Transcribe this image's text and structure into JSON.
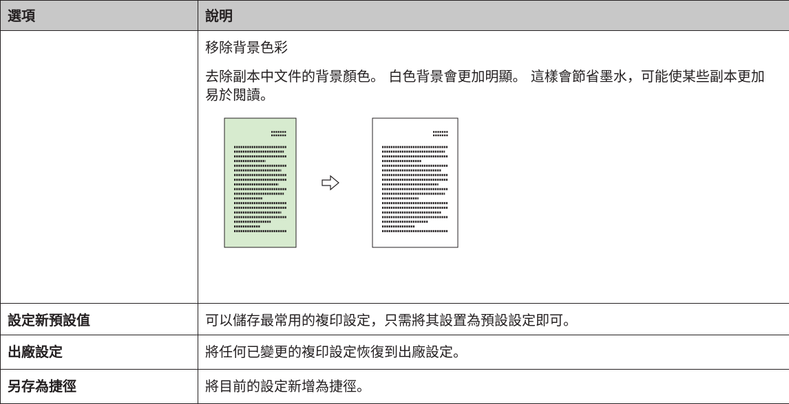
{
  "table": {
    "header": [
      "選項",
      "說明"
    ],
    "rows": [
      {
        "description_title": "移除背景色彩",
        "description": "去除副本中文件的背景顏色。 白色背景會更加明顯。 這樣會節省墨水，可能使某些副本更加易於閱讀。"
      },
      {
        "option": "設定新預設值",
        "description": "可以儲存最常用的複印設定，只需將其設置為預設設定即可。"
      },
      {
        "option": "出廠設定",
        "description": "將任何已變更的複印設定恢復到出廠設定。"
      },
      {
        "option": "另存為捷徑",
        "description": "將目前的設定新增為捷徑。"
      }
    ]
  }
}
